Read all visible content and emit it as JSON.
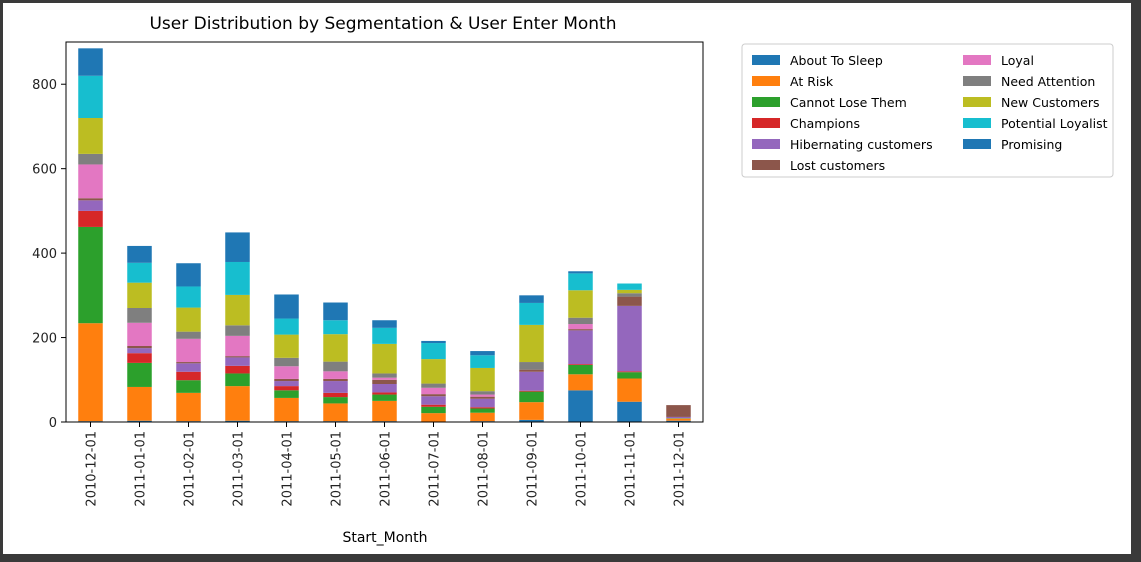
{
  "chart_data": {
    "type": "bar",
    "stacked": true,
    "title": "User Distribution by Segmentation & User Enter Month",
    "xlabel": "Start_Month",
    "ylabel": "",
    "ylim": [
      0,
      900
    ],
    "yticks": [
      0,
      200,
      400,
      600,
      800
    ],
    "grid": false,
    "legend_position": "outside-right",
    "categories": [
      "2010-12-01",
      "2011-01-01",
      "2011-02-01",
      "2011-03-01",
      "2011-04-01",
      "2011-05-01",
      "2011-06-01",
      "2011-07-01",
      "2011-08-01",
      "2011-09-01",
      "2011-10-01",
      "2011-11-01",
      "2011-12-01"
    ],
    "series": [
      {
        "name": "About To Sleep",
        "color": "#1f77b4",
        "values": [
          2,
          3,
          2,
          3,
          2,
          2,
          2,
          1,
          2,
          5,
          75,
          48,
          3
        ]
      },
      {
        "name": "At Risk",
        "color": "#ff7f0e",
        "values": [
          232,
          80,
          67,
          82,
          55,
          42,
          48,
          20,
          20,
          42,
          38,
          55,
          5
        ]
      },
      {
        "name": "Cannot Lose Them",
        "color": "#2ca02c",
        "values": [
          228,
          57,
          30,
          30,
          18,
          15,
          15,
          15,
          10,
          25,
          22,
          15,
          1
        ]
      },
      {
        "name": "Champions",
        "color": "#d62728",
        "values": [
          38,
          23,
          20,
          18,
          10,
          10,
          5,
          5,
          3,
          2,
          2,
          2,
          0
        ]
      },
      {
        "name": "Hibernating customers",
        "color": "#9467bd",
        "values": [
          25,
          12,
          20,
          20,
          12,
          28,
          20,
          20,
          20,
          45,
          80,
          155,
          3
        ]
      },
      {
        "name": "Lost customers",
        "color": "#8c564b",
        "values": [
          5,
          5,
          3,
          3,
          5,
          5,
          10,
          5,
          5,
          5,
          3,
          22,
          28
        ]
      },
      {
        "name": "Loyal",
        "color": "#e377c2",
        "values": [
          80,
          55,
          55,
          48,
          30,
          18,
          5,
          15,
          5,
          0,
          12,
          0,
          0
        ]
      },
      {
        "name": "Need Attention",
        "color": "#7f7f7f",
        "values": [
          25,
          35,
          17,
          25,
          20,
          23,
          10,
          10,
          8,
          18,
          15,
          8,
          0
        ]
      },
      {
        "name": "New Customers",
        "color": "#bcbd22",
        "values": [
          85,
          60,
          57,
          72,
          55,
          65,
          70,
          58,
          55,
          88,
          65,
          8,
          0
        ]
      },
      {
        "name": "Potential Loyalist",
        "color": "#17becf",
        "values": [
          100,
          47,
          50,
          78,
          38,
          33,
          38,
          38,
          30,
          52,
          40,
          15,
          0
        ]
      },
      {
        "name": "Promising",
        "color": "#1f77b4",
        "values": [
          65,
          40,
          55,
          70,
          57,
          42,
          18,
          5,
          10,
          18,
          5,
          0,
          0
        ]
      }
    ]
  }
}
